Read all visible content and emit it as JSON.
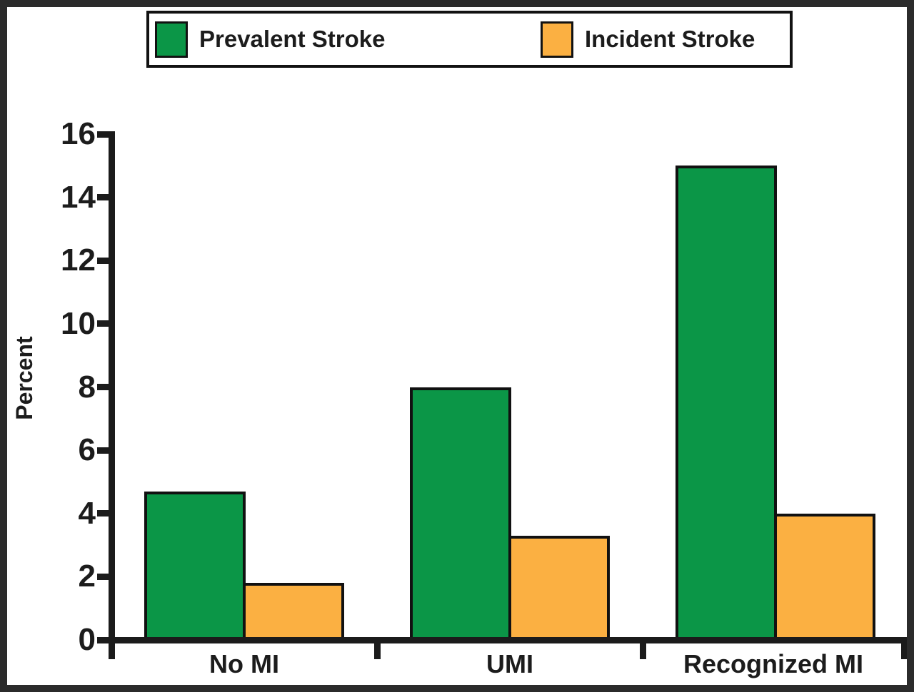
{
  "legend": {
    "items": [
      {
        "label": "Prevalent Stroke",
        "color": "#0B9647"
      },
      {
        "label": "Incident Stroke",
        "color": "#FBB042"
      }
    ]
  },
  "chart_data": {
    "type": "bar",
    "categories": [
      "No MI",
      "UMI",
      "Recognized MI"
    ],
    "series": [
      {
        "name": "Prevalent Stroke",
        "color": "#0B9647",
        "values": [
          4.7,
          8.0,
          15.0
        ]
      },
      {
        "name": "Incident Stroke",
        "color": "#FBB042",
        "values": [
          1.8,
          3.3,
          4.0
        ]
      }
    ],
    "title": "",
    "xlabel": "",
    "ylabel": "Percent",
    "ylim": [
      0,
      16
    ],
    "yticks": [
      0,
      2,
      4,
      6,
      8,
      10,
      12,
      14,
      16
    ],
    "legend_position": "top",
    "grid": false
  },
  "colors": {
    "frame": "#2b2b2b",
    "axis": "#1b1b1b",
    "text": "#1c1c1c",
    "background": "#ffffff"
  }
}
